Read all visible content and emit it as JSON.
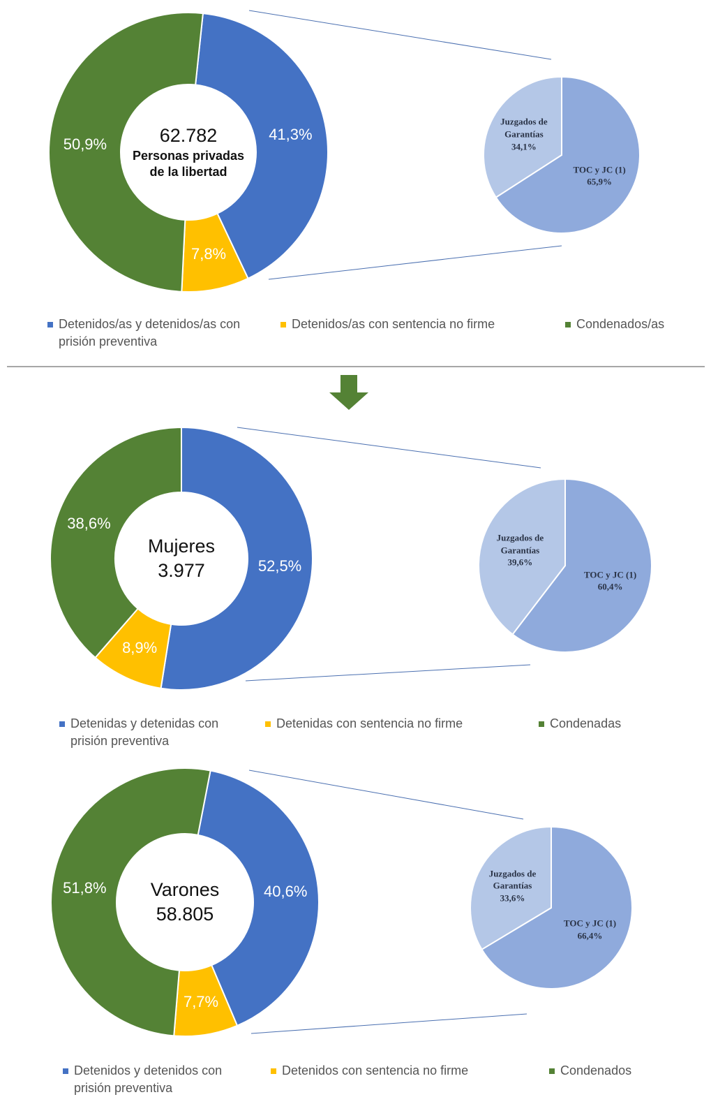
{
  "chart_data": [
    {
      "type": "donut",
      "title": "Personas privadas de la libertad",
      "total": {
        "value": 62782,
        "label": "62.782"
      },
      "categories": [
        "Detenidos/as y detenidos/as con prisión preventiva",
        "Detenidos/as con sentencia no firme",
        "Condenados/as"
      ],
      "values": [
        41.3,
        7.8,
        50.9
      ],
      "value_labels": [
        "41,3%",
        "7,8%",
        "50,9%"
      ],
      "colors": [
        "#4472c4",
        "#ffc000",
        "#548235"
      ],
      "breakdown": {
        "type": "pie",
        "categories": [
          "TOC y JC (1)",
          "Juzgados de Garantías"
        ],
        "values": [
          65.9,
          34.1
        ],
        "value_labels": [
          "65,9%",
          "34,1%"
        ],
        "colors": [
          "#8faadc",
          "#b4c7e7"
        ]
      }
    },
    {
      "type": "donut",
      "title": "Mujeres",
      "total": {
        "value": 3977,
        "label": "3.977"
      },
      "categories": [
        "Detenidas y detenidas con prisión preventiva",
        "Detenidas con sentencia no firme",
        "Condenadas"
      ],
      "values": [
        52.5,
        8.9,
        38.6
      ],
      "value_labels": [
        "52,5%",
        "8,9%",
        "38,6%"
      ],
      "colors": [
        "#4472c4",
        "#ffc000",
        "#548235"
      ],
      "breakdown": {
        "type": "pie",
        "categories": [
          "TOC y JC (1)",
          "Juzgados de Garantías"
        ],
        "values": [
          60.4,
          39.6
        ],
        "value_labels": [
          "60,4%",
          "39,6%"
        ],
        "colors": [
          "#8faadc",
          "#b4c7e7"
        ]
      }
    },
    {
      "type": "donut",
      "title": "Varones",
      "total": {
        "value": 58805,
        "label": "58.805"
      },
      "categories": [
        "Detenidos y detenidos con prisión preventiva",
        "Detenidos con sentencia no firme",
        "Condenados"
      ],
      "values": [
        40.6,
        7.7,
        51.8
      ],
      "value_labels": [
        "40,6%",
        "7,7%",
        "51,8%"
      ],
      "colors": [
        "#4472c4",
        "#ffc000",
        "#548235"
      ],
      "breakdown": {
        "type": "pie",
        "categories": [
          "TOC y JC (1)",
          "Juzgados de Garantías"
        ],
        "values": [
          66.4,
          33.6
        ],
        "value_labels": [
          "66,4%",
          "33,6%"
        ],
        "colors": [
          "#8faadc",
          "#b4c7e7"
        ]
      }
    }
  ]
}
